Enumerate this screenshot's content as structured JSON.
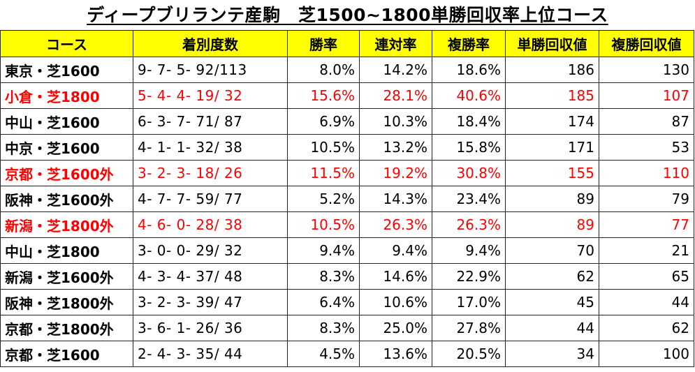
{
  "title": "ディープブリランテ産駒　芝1500~1800単勝回収率上位コース",
  "colors": {
    "header_bg": "#ffff00",
    "highlight": "#ff0000"
  },
  "headers": [
    "コース",
    "着別度数",
    "勝率",
    "連対率",
    "複勝率",
    "単勝回収値",
    "複勝回収値"
  ],
  "rows": [
    {
      "course": "東京・芝1600",
      "record": "9-  7-  5- 92/113",
      "win": "8.0%",
      "place2": "14.2%",
      "place3": "18.6%",
      "win_ret": "186",
      "place_ret": "130",
      "highlight": false
    },
    {
      "course": "小倉・芝1800",
      "record": "5-  4-  4- 19/ 32",
      "win": "15.6%",
      "place2": "28.1%",
      "place3": "40.6%",
      "win_ret": "185",
      "place_ret": "107",
      "highlight": true
    },
    {
      "course": "中山・芝1600",
      "record": "6-  3-  7- 71/ 87",
      "win": "6.9%",
      "place2": "10.3%",
      "place3": "18.4%",
      "win_ret": "174",
      "place_ret": "87",
      "highlight": false
    },
    {
      "course": "中京・芝1600",
      "record": "4-  1-  1- 32/ 38",
      "win": "10.5%",
      "place2": "13.2%",
      "place3": "15.8%",
      "win_ret": "171",
      "place_ret": "53",
      "highlight": false
    },
    {
      "course": "京都・芝1600外",
      "record": "3-  2-  3- 18/ 26",
      "win": "11.5%",
      "place2": "19.2%",
      "place3": "30.8%",
      "win_ret": "155",
      "place_ret": "110",
      "highlight": true
    },
    {
      "course": "阪神・芝1600外",
      "record": "4-  7-  7- 59/ 77",
      "win": "5.2%",
      "place2": "14.3%",
      "place3": "23.4%",
      "win_ret": "89",
      "place_ret": "79",
      "highlight": false
    },
    {
      "course": "新潟・芝1800外",
      "record": "4-  6-  0- 28/ 38",
      "win": "10.5%",
      "place2": "26.3%",
      "place3": "26.3%",
      "win_ret": "89",
      "place_ret": "77",
      "highlight": true
    },
    {
      "course": "中山・芝1800",
      "record": "3-  0-  0- 29/ 32",
      "win": "9.4%",
      "place2": "9.4%",
      "place3": "9.4%",
      "win_ret": "70",
      "place_ret": "21",
      "highlight": false
    },
    {
      "course": "新潟・芝1600外",
      "record": "4-  3-  4- 37/ 48",
      "win": "8.3%",
      "place2": "14.6%",
      "place3": "22.9%",
      "win_ret": "62",
      "place_ret": "65",
      "highlight": false
    },
    {
      "course": "阪神・芝1800外",
      "record": "3-  2-  3- 39/ 47",
      "win": "6.4%",
      "place2": "10.6%",
      "place3": "17.0%",
      "win_ret": "45",
      "place_ret": "44",
      "highlight": false
    },
    {
      "course": "京都・芝1800外",
      "record": "3-  6-  1- 26/ 36",
      "win": "8.3%",
      "place2": "25.0%",
      "place3": "27.8%",
      "win_ret": "44",
      "place_ret": "62",
      "highlight": false
    },
    {
      "course": "京都・芝1600",
      "record": "2-  4-  3- 35/ 44",
      "win": "4.5%",
      "place2": "13.6%",
      "place3": "20.5%",
      "win_ret": "34",
      "place_ret": "100",
      "highlight": false
    }
  ]
}
